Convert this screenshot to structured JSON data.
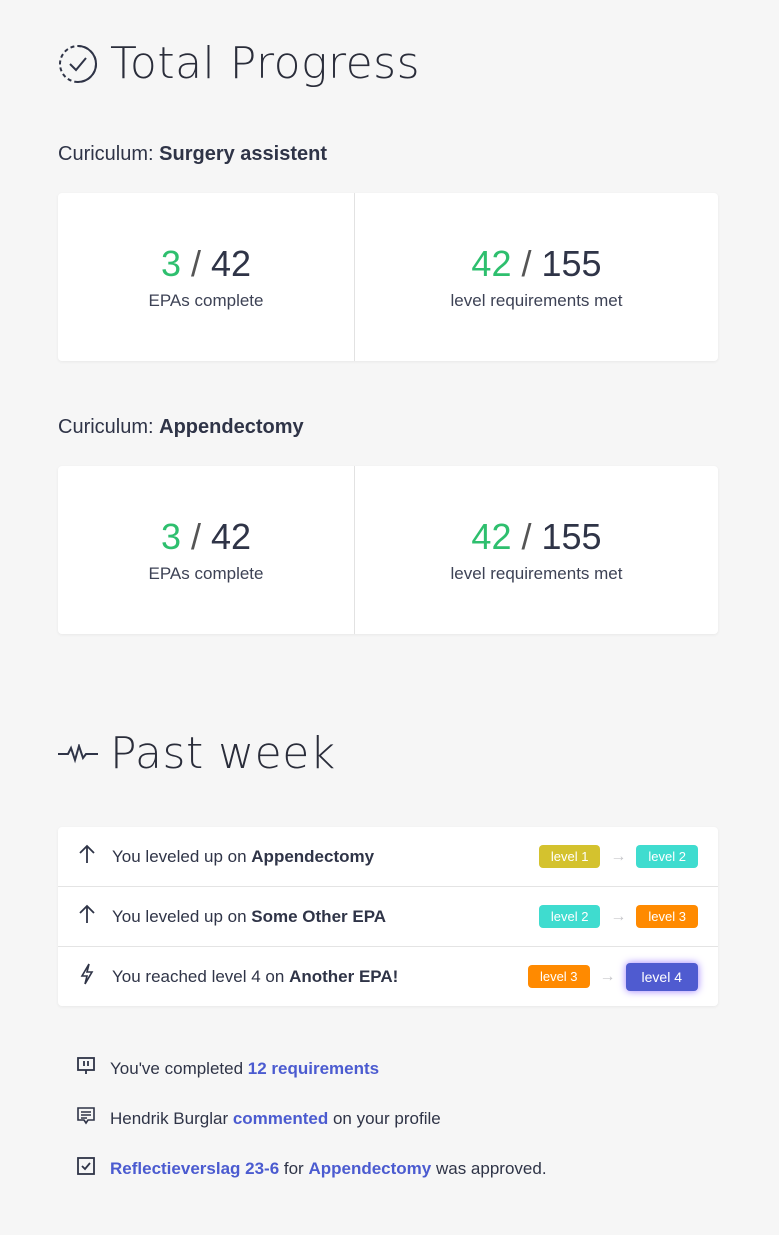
{
  "total": {
    "title": "Total Progress",
    "icon": "progress-check-icon"
  },
  "curricula": [
    {
      "prefix": "Curiculum: ",
      "name": "Surgery assistent",
      "epa_done": "3",
      "epa_total": "42",
      "epa_label": "EPAs complete",
      "req_done": "42",
      "req_total": "155",
      "req_label": "level requirements met"
    },
    {
      "prefix": "Curiculum: ",
      "name": "Appendectomy",
      "epa_done": "3",
      "epa_total": "42",
      "epa_label": "EPAs complete",
      "req_done": "42",
      "req_total": "155",
      "req_label": "level requirements met"
    }
  ],
  "separator": "/",
  "past_week": {
    "title": "Past week",
    "icon": "pulse-icon"
  },
  "events": [
    {
      "icon": "arrow-up-icon",
      "text": "You leveled up on ",
      "bold": "Appendectomy",
      "from": "level 1",
      "from_color": "#d4c22e",
      "to": "level 2",
      "to_color": "#3fdccf"
    },
    {
      "icon": "arrow-up-icon",
      "text": "You leveled up on ",
      "bold": "Some Other EPA",
      "from": "level 2",
      "from_color": "#3fdccf",
      "to": "level 3",
      "to_color": "#ff8a00"
    },
    {
      "icon": "lightning-icon",
      "text": "You reached level 4 on ",
      "bold": "Another EPA!",
      "from": "level 3",
      "from_color": "#ff8a00",
      "to": "level 4",
      "to_color": "#4f5bd0"
    }
  ],
  "activity": [
    {
      "icon": "alert-comment-icon",
      "a": "You've completed ",
      "link1": "12 requirements"
    },
    {
      "icon": "comment-icon",
      "a": "Hendrik Burglar ",
      "link1": "commented",
      "b": " on your profile"
    },
    {
      "icon": "checkbox-icon",
      "link1": "Reflectieverslag 23-6",
      "a": " for ",
      "link2": "Appendectomy",
      "b": " was approved."
    }
  ]
}
